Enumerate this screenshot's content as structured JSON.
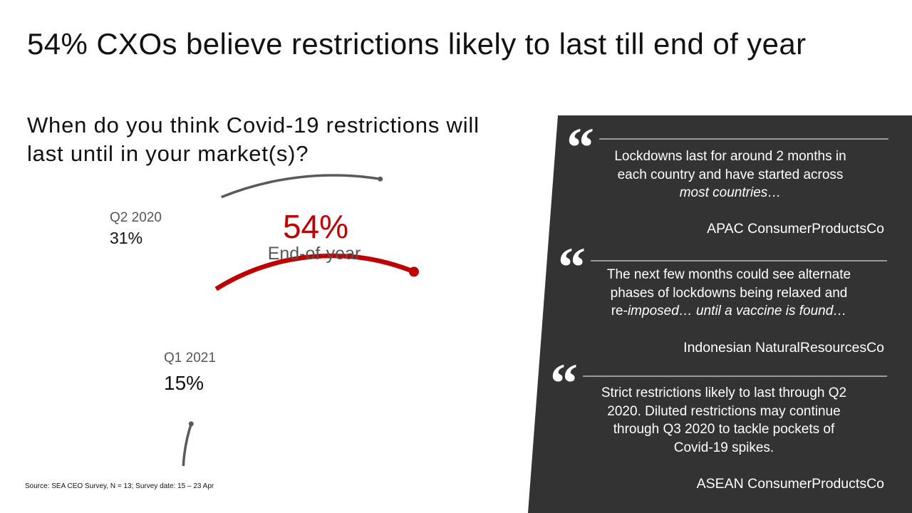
{
  "title": "54% CXOs believe restrictions likely to last till end of year",
  "question": "When do you think Covid-19 restrictions will last until in your market(s)?",
  "source": "Source: SEA CEO Survey, N = 13; Survey date: 15 – 23 Apr",
  "colors": {
    "accent": "#c00000",
    "arc": "#5a5a5a",
    "panel": "#333333",
    "rule": "#9a9a9a"
  },
  "chart_data": {
    "type": "radial-arc",
    "unit": "%",
    "categories": [
      "Q2 2020",
      "End-of-year",
      "Q1 2021"
    ],
    "values": [
      31,
      54,
      15
    ],
    "labels": [
      {
        "name": "Q2 2020",
        "value_text": "31%"
      },
      {
        "name": "End-of-year",
        "value_text": "54%"
      },
      {
        "name": "Q1 2021",
        "value_text": "15%"
      }
    ],
    "highlight": "End-of-year"
  },
  "quotes": [
    {
      "mark": "“",
      "text_plain": "Lockdowns last for around 2 months in\neach country and have started across\n",
      "text_italic": "most countries…",
      "author": "APAC ConsumerProductsCo"
    },
    {
      "mark": "“",
      "text_plain": "The next few months could see alternate\nphases of lockdowns being relaxed and\nre-",
      "text_italic": "imposed… until a vaccine is found…",
      "author": "Indonesian NaturalResourcesCo"
    },
    {
      "mark": "“",
      "text_plain": "Strict restrictions likely to last through Q2\n2020. Diluted restrictions may continue\nthrough Q3 2020 to tackle pockets of\nCovid-19 spikes.",
      "text_italic": "",
      "author": "ASEAN ConsumerProductsCo"
    }
  ]
}
